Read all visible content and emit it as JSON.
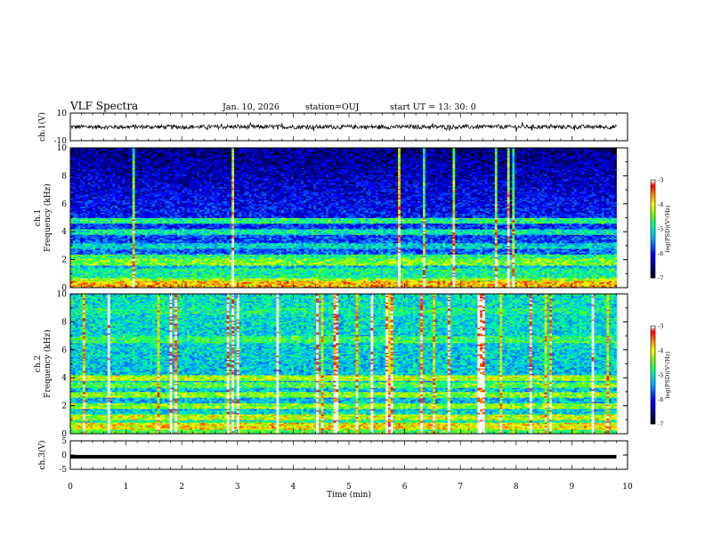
{
  "header": {
    "title": "VLF Spectra",
    "date": "Jan. 10, 2026",
    "station": "station=OUJ",
    "start": "start UT =   13: 30: 0"
  },
  "colors": {
    "waveform": "#000000",
    "spectrogram_colormap": [
      "#000000",
      "#00007f",
      "#0000ff",
      "#00bfff",
      "#00ff80",
      "#80ff00",
      "#ffff00",
      "#ff8000",
      "#ff0000",
      "#ffffff"
    ]
  },
  "chart_data": [
    {
      "type": "line",
      "ylabel": "ch.1(V)",
      "ylim": [
        -10,
        10
      ],
      "yticks": [
        "10",
        "-10"
      ],
      "description_series": {
        "x_min": [
          0,
          9.8
        ],
        "y_approx": 0,
        "amplitude_approx": 1.5
      }
    },
    {
      "type": "heatmap",
      "ylabel_lines": [
        "ch.1",
        "Frequency (kHz)"
      ],
      "ylim": [
        0,
        10
      ],
      "yticks": [
        "0",
        "2",
        "4",
        "6",
        "8",
        "10"
      ],
      "data_extent_min": [
        0,
        9.8
      ],
      "colorbar": {
        "label": "log(PSD)(V²/Hz)",
        "range": [
          -7,
          -3
        ],
        "ticks": [
          "-3",
          "-4",
          "-5",
          "-6",
          "-7"
        ]
      },
      "bands_khz": [
        {
          "f": 0.2,
          "level": 0.85
        },
        {
          "f": 0.5,
          "level": 0.7
        },
        {
          "f": 1.2,
          "level": 0.55
        },
        {
          "f": 1.8,
          "level": 0.7
        },
        {
          "f": 2.1,
          "level": 0.6
        },
        {
          "f": 3.0,
          "level": 0.5
        },
        {
          "f": 4.0,
          "level": 0.55
        },
        {
          "f": 4.8,
          "level": 0.6
        }
      ]
    },
    {
      "type": "heatmap",
      "ylabel_lines": [
        "ch.2",
        "Frequency (kHz)"
      ],
      "ylim": [
        0,
        10
      ],
      "yticks": [
        "0",
        "2",
        "4",
        "6",
        "8",
        "10"
      ],
      "data_extent_min": [
        0,
        9.8
      ],
      "colorbar": {
        "label": "log(PSD)(V²/Hz)",
        "range": [
          -7,
          -3
        ],
        "ticks": [
          "-3",
          "-4",
          "-5",
          "-6",
          "-7"
        ]
      },
      "bands_khz": [
        {
          "f": 0.6,
          "level": 0.8
        },
        {
          "f": 1.2,
          "level": 0.75
        },
        {
          "f": 2.0,
          "level": 0.7
        },
        {
          "f": 2.8,
          "level": 0.7
        },
        {
          "f": 3.5,
          "level": 0.65
        },
        {
          "f": 4.0,
          "level": 0.75
        },
        {
          "f": 6.8,
          "level": 0.6
        },
        {
          "f": 8.8,
          "level": 0.55
        }
      ]
    },
    {
      "type": "line",
      "ylabel": "ch.3(V)",
      "ylim": [
        -5,
        5
      ],
      "yticks": [
        "5",
        "0",
        "-5"
      ],
      "xlabel": "Time (min)",
      "xlim": [
        0,
        10
      ],
      "xticks": [
        "0",
        "1",
        "2",
        "3",
        "4",
        "5",
        "6",
        "7",
        "8",
        "9",
        "10"
      ],
      "description_series": {
        "x_min": [
          0,
          9.8
        ],
        "y_approx": -0.6
      }
    }
  ]
}
